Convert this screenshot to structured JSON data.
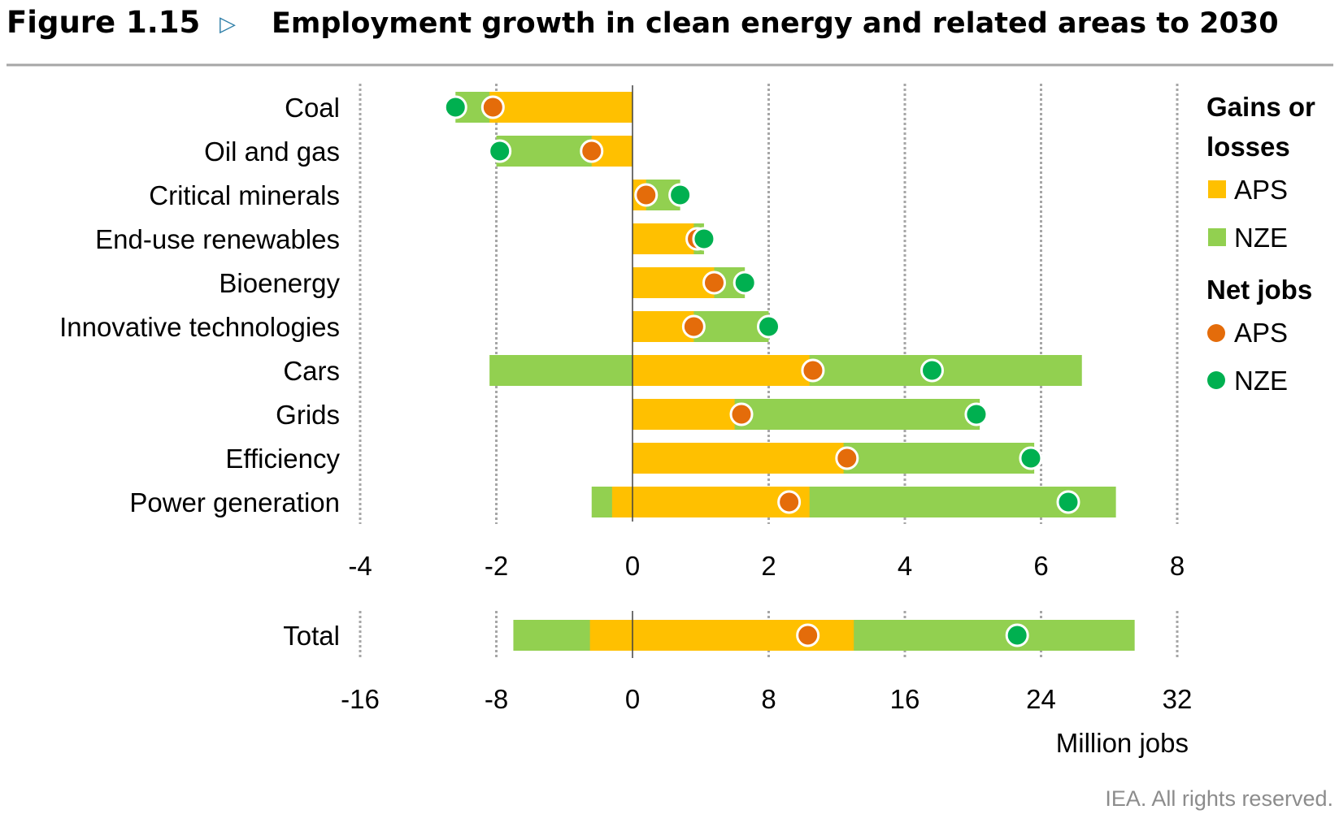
{
  "header": {
    "figure_label": "Figure 1.15",
    "arrow_glyph": "▷",
    "title": "Employment growth in clean energy and related areas to 2030"
  },
  "colors": {
    "aps_bar": "#FFC000",
    "nze_bar": "#92D050",
    "aps_dot": "#E46C0A",
    "nze_dot": "#00B050",
    "grid": "#A6A6A6",
    "title_rule": "#A6A6A6"
  },
  "legend": {
    "gains_title_line1": "Gains or",
    "gains_title_line2": "losses",
    "gains_items": [
      "APS",
      "NZE"
    ],
    "net_title": "Net jobs",
    "net_items": [
      "APS",
      "NZE"
    ]
  },
  "chart_data": [
    {
      "type": "bar",
      "orientation": "horizontal",
      "xlim": [
        -4,
        8
      ],
      "ticks": [
        -4,
        -2,
        0,
        2,
        4,
        6,
        8
      ],
      "grid": true,
      "legend_position": "right",
      "categories": [
        "Coal",
        "Oil and gas",
        "Critical minerals",
        "End-use renewables",
        "Bioenergy",
        "Innovative technologies",
        "Cars",
        "Grids",
        "Efficiency",
        "Power generation"
      ],
      "series": [
        {
          "name": "APS",
          "kind": "gains_or_losses",
          "ranges": [
            [
              -2.1,
              0
            ],
            [
              -0.6,
              0
            ],
            [
              0,
              0.2
            ],
            [
              0,
              0.9
            ],
            [
              0,
              1.2
            ],
            [
              0,
              0.9
            ],
            [
              0,
              2.6
            ],
            [
              0,
              1.5
            ],
            [
              0,
              3.1
            ],
            [
              -0.3,
              2.6
            ]
          ]
        },
        {
          "name": "NZE",
          "kind": "gains_or_losses",
          "ranges": [
            [
              -2.6,
              0
            ],
            [
              -2.0,
              0
            ],
            [
              0,
              0.7
            ],
            [
              0,
              1.05
            ],
            [
              0,
              1.65
            ],
            [
              0,
              2.0
            ],
            [
              -2.1,
              6.6
            ],
            [
              0,
              5.1
            ],
            [
              0,
              5.9
            ],
            [
              -0.6,
              7.1
            ]
          ]
        },
        {
          "name": "APS",
          "kind": "net_jobs",
          "values": [
            -2.05,
            -0.6,
            0.2,
            0.95,
            1.2,
            0.9,
            2.65,
            1.6,
            3.15,
            2.3
          ]
        },
        {
          "name": "NZE",
          "kind": "net_jobs",
          "values": [
            -2.6,
            -1.95,
            0.7,
            1.05,
            1.65,
            2.0,
            4.4,
            5.05,
            5.85,
            6.4
          ]
        }
      ]
    },
    {
      "type": "bar",
      "orientation": "horizontal",
      "xlim": [
        -16,
        32
      ],
      "ticks": [
        -16,
        -8,
        0,
        8,
        16,
        24,
        32
      ],
      "grid": true,
      "xlabel": "Million jobs",
      "categories": [
        "Total"
      ],
      "series": [
        {
          "name": "APS",
          "kind": "gains_or_losses",
          "ranges": [
            [
              -2.5,
              13
            ]
          ]
        },
        {
          "name": "NZE",
          "kind": "gains_or_losses",
          "ranges": [
            [
              -7,
              29.5
            ]
          ]
        },
        {
          "name": "APS",
          "kind": "net_jobs",
          "values": [
            10.3
          ]
        },
        {
          "name": "NZE",
          "kind": "net_jobs",
          "values": [
            22.6
          ]
        }
      ]
    }
  ],
  "credit": "IEA. All rights reserved."
}
